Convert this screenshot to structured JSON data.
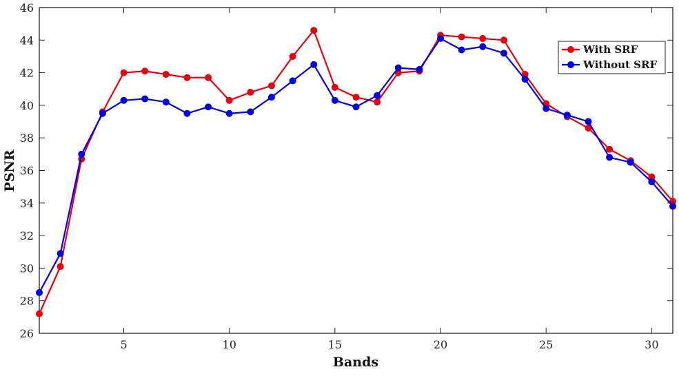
{
  "chart_data": {
    "type": "line",
    "xlabel": "Bands",
    "ylabel": "PSNR",
    "xlim": [
      1,
      31
    ],
    "ylim": [
      26,
      46
    ],
    "xticks": [
      5,
      10,
      15,
      20,
      25,
      30
    ],
    "yticks": [
      26,
      28,
      30,
      32,
      34,
      36,
      38,
      40,
      42,
      44,
      46
    ],
    "grid": false,
    "legend_position": "top-right",
    "x": [
      1,
      2,
      3,
      4,
      5,
      6,
      7,
      8,
      9,
      10,
      11,
      12,
      13,
      14,
      15,
      16,
      17,
      18,
      19,
      20,
      21,
      22,
      23,
      24,
      25,
      26,
      27,
      28,
      29,
      30,
      31
    ],
    "series": [
      {
        "name": "With SRF",
        "color": "#e8000b",
        "values": [
          27.2,
          30.1,
          36.7,
          39.6,
          42.0,
          42.1,
          41.9,
          41.7,
          41.7,
          40.3,
          40.8,
          41.2,
          43.0,
          44.6,
          41.1,
          40.5,
          40.2,
          42.0,
          42.1,
          44.3,
          44.2,
          44.1,
          44.0,
          41.9,
          40.1,
          39.3,
          38.6,
          37.3,
          36.6,
          35.6,
          34.1
        ]
      },
      {
        "name": "Without SRF",
        "color": "#0000e6",
        "values": [
          28.5,
          30.9,
          37.0,
          39.5,
          40.3,
          40.4,
          40.2,
          39.5,
          39.9,
          39.5,
          39.6,
          40.5,
          41.5,
          42.5,
          40.3,
          39.9,
          40.6,
          42.3,
          42.2,
          44.1,
          43.4,
          43.6,
          43.2,
          41.6,
          39.8,
          39.4,
          39.0,
          36.8,
          36.5,
          35.3,
          33.8
        ]
      }
    ]
  }
}
